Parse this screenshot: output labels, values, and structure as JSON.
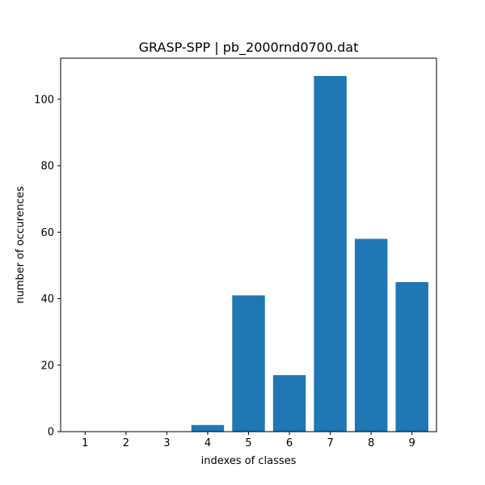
{
  "chart_data": {
    "type": "bar",
    "title": "GRASP-SPP | pb_2000rnd0700.dat",
    "xlabel": "indexes of classes",
    "ylabel": "number of occurences",
    "categories": [
      "1",
      "2",
      "3",
      "4",
      "5",
      "6",
      "7",
      "8",
      "9"
    ],
    "values": [
      0,
      0,
      0,
      2,
      41,
      17,
      107,
      58,
      45
    ],
    "ylim": [
      0,
      112.35
    ],
    "yticks": [
      0,
      20,
      40,
      60,
      80,
      100
    ],
    "bar_color": "#1f77b4",
    "grid": false,
    "legend": "none"
  }
}
